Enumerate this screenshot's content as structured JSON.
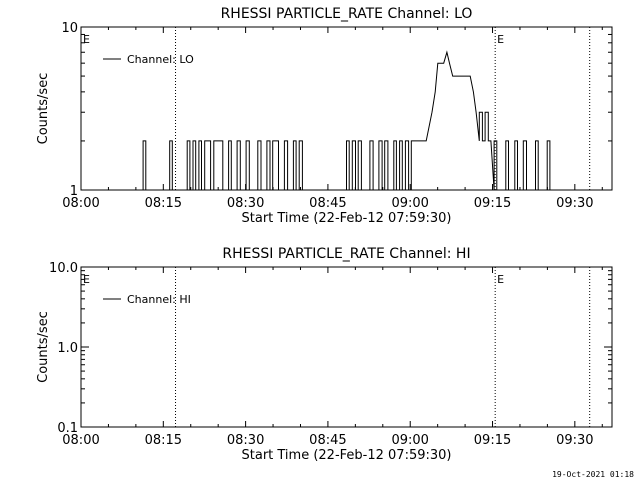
{
  "chart_data": [
    {
      "type": "line",
      "title": "RHESSI PARTICLE_RATE Channel: LO",
      "xlabel": "Start Time (22-Feb-12 07:59:30)",
      "ylabel": "Counts/sec",
      "y_scale": "log",
      "ylim": [
        1,
        10
      ],
      "y_ticks": [
        "1",
        "10"
      ],
      "x_ticks": [
        "08:00",
        "08:15",
        "08:30",
        "08:45",
        "09:00",
        "09:15",
        "09:30"
      ],
      "xlim_minutes": [
        0,
        100
      ],
      "vlines_minutes": [
        17.8,
        78,
        95.8
      ],
      "event_markers": [
        {
          "label": "E",
          "minute": 0
        },
        {
          "label": "E",
          "minute": 78
        }
      ],
      "legend_position": "top-left",
      "series": [
        {
          "name": "Channel: LO",
          "points": [
            [
              0,
              1
            ],
            [
              11.7,
              1
            ],
            [
              11.7,
              2
            ],
            [
              12.2,
              2
            ],
            [
              12.2,
              1
            ],
            [
              16.7,
              1
            ],
            [
              16.7,
              2
            ],
            [
              17.2,
              2
            ],
            [
              17.2,
              1
            ],
            [
              20,
              1
            ],
            [
              20,
              2
            ],
            [
              20.5,
              2
            ],
            [
              20.5,
              1
            ],
            [
              21.1,
              1
            ],
            [
              21.1,
              2
            ],
            [
              21.6,
              2
            ],
            [
              21.6,
              1
            ],
            [
              22.2,
              1
            ],
            [
              22.2,
              2
            ],
            [
              22.7,
              2
            ],
            [
              22.7,
              1
            ],
            [
              23.3,
              1
            ],
            [
              23.3,
              2
            ],
            [
              24.4,
              2
            ],
            [
              24.4,
              1
            ],
            [
              25,
              1
            ],
            [
              25,
              2
            ],
            [
              26.7,
              2
            ],
            [
              26.7,
              1
            ],
            [
              27.8,
              1
            ],
            [
              27.8,
              2
            ],
            [
              28.3,
              2
            ],
            [
              28.3,
              1
            ],
            [
              29.4,
              1
            ],
            [
              29.4,
              2
            ],
            [
              30,
              2
            ],
            [
              30,
              1
            ],
            [
              31.1,
              1
            ],
            [
              31.1,
              2
            ],
            [
              31.7,
              2
            ],
            [
              31.7,
              1
            ],
            [
              33.3,
              1
            ],
            [
              33.3,
              2
            ],
            [
              33.9,
              2
            ],
            [
              33.9,
              1
            ],
            [
              35,
              1
            ],
            [
              35,
              2
            ],
            [
              35.6,
              2
            ],
            [
              35.6,
              1
            ],
            [
              36.1,
              1
            ],
            [
              36.1,
              2
            ],
            [
              37.2,
              2
            ],
            [
              37.2,
              1
            ],
            [
              38.3,
              1
            ],
            [
              38.3,
              2
            ],
            [
              38.9,
              2
            ],
            [
              38.9,
              1
            ],
            [
              40,
              1
            ],
            [
              40,
              2
            ],
            [
              40.5,
              2
            ],
            [
              40.5,
              1
            ],
            [
              41.1,
              1
            ],
            [
              41.1,
              2
            ],
            [
              41.7,
              2
            ],
            [
              41.7,
              1
            ],
            [
              50,
              1
            ],
            [
              50,
              2
            ],
            [
              50.5,
              2
            ],
            [
              50.5,
              1
            ],
            [
              51.1,
              1
            ],
            [
              51.1,
              2
            ],
            [
              51.7,
              2
            ],
            [
              51.7,
              1
            ],
            [
              52.2,
              1
            ],
            [
              52.2,
              2
            ],
            [
              52.8,
              2
            ],
            [
              52.8,
              1
            ],
            [
              54.4,
              1
            ],
            [
              54.4,
              2
            ],
            [
              55,
              2
            ],
            [
              55,
              1
            ],
            [
              56.1,
              1
            ],
            [
              56.1,
              2
            ],
            [
              56.7,
              2
            ],
            [
              56.7,
              1
            ],
            [
              57.2,
              1
            ],
            [
              57.2,
              2
            ],
            [
              57.8,
              2
            ],
            [
              57.8,
              1
            ],
            [
              58.9,
              1
            ],
            [
              58.9,
              2
            ],
            [
              59.4,
              2
            ],
            [
              59.4,
              1
            ],
            [
              60,
              1
            ],
            [
              60,
              2
            ],
            [
              60.5,
              2
            ],
            [
              60.5,
              1
            ],
            [
              61.1,
              1
            ],
            [
              61.1,
              2
            ],
            [
              61.7,
              2
            ],
            [
              61.7,
              1
            ],
            [
              62.2,
              1
            ],
            [
              62.2,
              2
            ],
            [
              65,
              2
            ],
            [
              66.1,
              3
            ],
            [
              66.7,
              4
            ],
            [
              67.2,
              6
            ],
            [
              68.3,
              6
            ],
            [
              68.9,
              7
            ],
            [
              69.4,
              6
            ],
            [
              70,
              5
            ],
            [
              71.1,
              5
            ],
            [
              72.2,
              5
            ],
            [
              73.3,
              5
            ],
            [
              73.9,
              4
            ],
            [
              74.4,
              3
            ],
            [
              75,
              2
            ],
            [
              75,
              3
            ],
            [
              75.6,
              3
            ],
            [
              75.6,
              2
            ],
            [
              76.1,
              2
            ],
            [
              76.1,
              3
            ],
            [
              76.7,
              3
            ],
            [
              76.7,
              2
            ],
            [
              77.2,
              2
            ],
            [
              77.8,
              1
            ],
            [
              77.8,
              2
            ],
            [
              78.3,
              2
            ],
            [
              78.3,
              1
            ],
            [
              80,
              1
            ],
            [
              80,
              2
            ],
            [
              80.5,
              2
            ],
            [
              80.5,
              1
            ],
            [
              81.7,
              1
            ],
            [
              81.7,
              2
            ],
            [
              82.2,
              2
            ],
            [
              82.2,
              1
            ],
            [
              83.3,
              1
            ],
            [
              83.3,
              2
            ],
            [
              83.9,
              2
            ],
            [
              83.9,
              1
            ],
            [
              85.6,
              1
            ],
            [
              85.6,
              2
            ],
            [
              86.1,
              2
            ],
            [
              86.1,
              1
            ],
            [
              87.8,
              1
            ],
            [
              87.8,
              2
            ],
            [
              88.3,
              2
            ],
            [
              88.3,
              1
            ],
            [
              89.4,
              1
            ]
          ]
        }
      ]
    },
    {
      "type": "line",
      "title": "RHESSI PARTICLE_RATE Channel: HI",
      "xlabel": "Start Time (22-Feb-12 07:59:30)",
      "ylabel": "Counts/sec",
      "y_scale": "log",
      "ylim": [
        0.1,
        10
      ],
      "y_ticks": [
        "0.1",
        "1.0",
        "10.0"
      ],
      "x_ticks": [
        "08:00",
        "08:15",
        "08:30",
        "08:45",
        "09:00",
        "09:15",
        "09:30"
      ],
      "xlim_minutes": [
        0,
        100
      ],
      "vlines_minutes": [
        17.8,
        78,
        95.8
      ],
      "event_markers": [
        {
          "label": "E",
          "minute": 0
        },
        {
          "label": "E",
          "minute": 78
        }
      ],
      "legend_position": "top-left",
      "series": [
        {
          "name": "Channel: HI",
          "points": []
        }
      ]
    }
  ],
  "footer": {
    "timestamp": "19-Oct-2021 01:18"
  }
}
